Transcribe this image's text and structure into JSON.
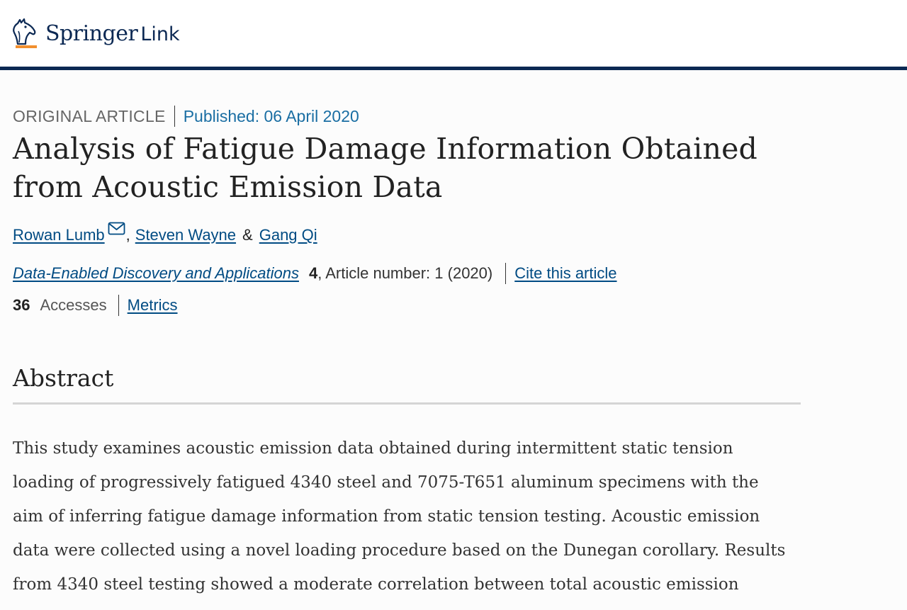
{
  "brand": {
    "name_main": "Springer",
    "name_link": "Link",
    "accent": "#0b2853",
    "logo_underline": "#f18f2e"
  },
  "article": {
    "type": "ORIGINAL ARTICLE",
    "published": "Published: 06 April 2020",
    "title": "Analysis of Fatigue Damage Information Obtained from Acoustic Emission Data",
    "authors": [
      {
        "name": "Rowan Lumb",
        "has_email": true
      },
      {
        "name": "Steven Wayne"
      },
      {
        "name": "Gang Qi"
      }
    ],
    "author_sep_comma": ",",
    "author_sep_amp": "&",
    "journal": "Data-Enabled Discovery and Applications",
    "volume": "4",
    "article_number": ", Article number: 1 (2020)",
    "cite_label": "Cite this article",
    "accesses_count": "36",
    "accesses_label": "Accesses",
    "metrics_label": "Metrics"
  },
  "abstract": {
    "heading": "Abstract",
    "lines": [
      "This study examines acoustic emission data obtained during intermittent static tension",
      "loading of progressively fatigued 4340 steel and 7075-T651 aluminum specimens with the",
      "aim of inferring fatigue damage information from static tension testing. Acoustic emission",
      "data were collected using a novel loading procedure based on the Dunegan corollary. Results",
      "from 4340 steel testing showed a moderate correlation between total acoustic emission"
    ]
  },
  "colors": {
    "link": "#004b83",
    "published": "#1a6ea3",
    "header_border": "#0b2853"
  },
  "icons": {
    "logo": "springer-horse-icon",
    "email": "envelope-icon"
  }
}
